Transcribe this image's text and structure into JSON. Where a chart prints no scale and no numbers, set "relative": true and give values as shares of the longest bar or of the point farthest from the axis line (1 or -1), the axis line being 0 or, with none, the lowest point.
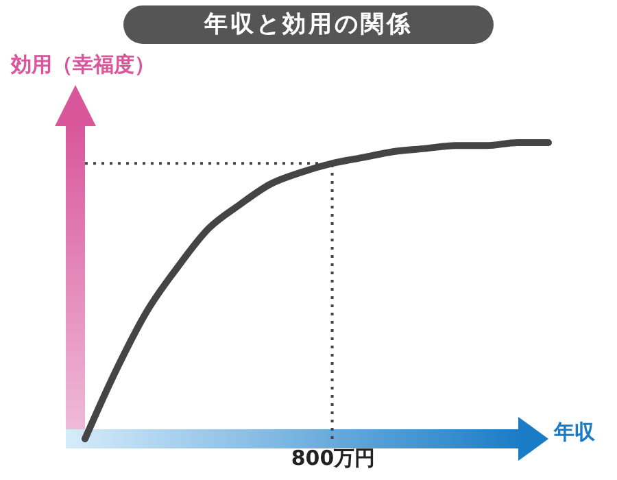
{
  "chart_data": {
    "type": "line",
    "title": "年収と効用の関係",
    "xlabel": "年収",
    "ylabel": "効用（幸福度）",
    "relative": true,
    "categories": [
      null,
      null,
      null,
      null,
      null,
      null,
      null,
      null,
      null,
      null,
      null,
      null,
      null,
      null,
      null,
      null
    ],
    "series": [
      {
        "color": "#444444",
        "values": [
          0,
          0.23,
          0.43,
          0.58,
          0.71,
          0.79,
          0.86,
          0.9,
          0.93,
          0.95,
          0.97,
          0.98,
          0.99,
          0.99,
          1,
          1
        ]
      }
    ],
    "annotations": [
      "800万円"
    ],
    "ref_lines": [
      {
        "axis": "y",
        "value": 0.93,
        "color": "#444444",
        "line_style": "dotted"
      }
    ],
    "marker": "none"
  }
}
